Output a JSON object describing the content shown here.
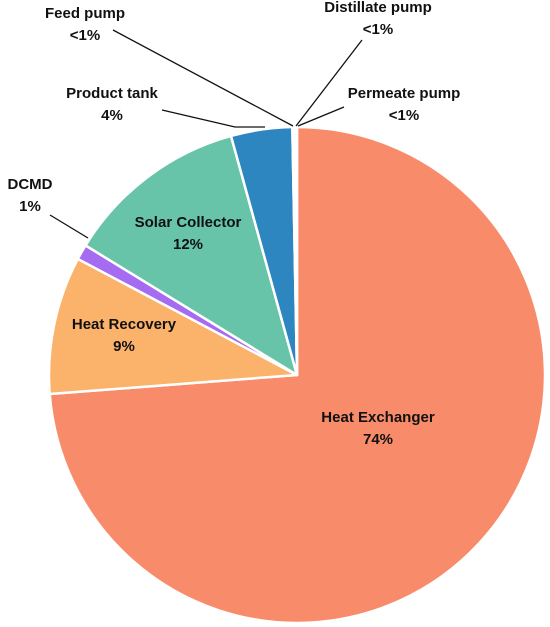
{
  "chart_data": {
    "type": "pie",
    "title": "",
    "start_angle_deg": 0,
    "direction": "clockwise",
    "slices": [
      {
        "name": "Heat Exchanger",
        "value": 74,
        "label": "74%",
        "color": "#F88B6A",
        "label_placement": "inside"
      },
      {
        "name": "Heat Recovery",
        "value": 9,
        "label": "9%",
        "color": "#FBB26B",
        "label_placement": "inside"
      },
      {
        "name": "DCMD",
        "value": 1,
        "label": "1%",
        "color": "#A56BF0",
        "label_placement": "outside"
      },
      {
        "name": "Solar Collector",
        "value": 12,
        "label": "12%",
        "color": "#67C4A8",
        "label_placement": "inside"
      },
      {
        "name": "Product tank",
        "value": 4,
        "label": "4%",
        "color": "#2E86C1",
        "label_placement": "outside"
      },
      {
        "name": "Feed pump",
        "value": 0.1,
        "label": "<1%",
        "color": "#888888",
        "label_placement": "outside"
      },
      {
        "name": "Distillate pump",
        "value": 0.1,
        "label": "<1%",
        "color": "#888888",
        "label_placement": "outside"
      },
      {
        "name": "Permeate pump",
        "value": 0.1,
        "label": "<1%",
        "color": "#888888",
        "label_placement": "outside"
      }
    ]
  }
}
